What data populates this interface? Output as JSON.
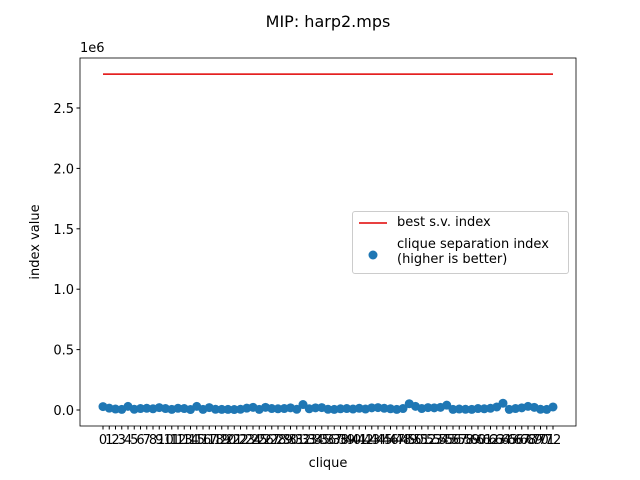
{
  "chart_data": {
    "type": "scatter",
    "title": "MIP: harp2.mps",
    "x_label": "clique",
    "y_label": "index value",
    "offset_text": "1e6",
    "x": [
      0,
      1,
      2,
      3,
      4,
      5,
      6,
      7,
      8,
      9,
      10,
      11,
      12,
      13,
      14,
      15,
      16,
      17,
      18,
      19,
      20,
      21,
      22,
      23,
      24,
      25,
      26,
      27,
      28,
      29,
      30,
      31,
      32,
      33,
      34,
      35,
      36,
      37,
      38,
      39,
      40,
      41,
      42,
      43,
      44,
      45,
      46,
      47,
      48,
      49,
      50,
      51,
      52,
      53,
      54,
      55,
      56,
      57,
      58,
      59,
      60,
      61,
      62,
      63,
      64,
      65,
      66,
      67,
      68,
      69,
      70,
      71,
      72
    ],
    "xlim": [
      -3.68,
      75.68
    ],
    "ylim": [
      -132500,
      2914000
    ],
    "yticks": [
      {
        "value": 0,
        "label": "0.0"
      },
      {
        "value": 500000,
        "label": "0.5"
      },
      {
        "value": 1000000,
        "label": "1.0"
      },
      {
        "value": 1500000,
        "label": "1.5"
      },
      {
        "value": 2000000,
        "label": "2.0"
      },
      {
        "value": 2500000,
        "label": "2.5"
      }
    ],
    "legend_position": "center right",
    "reference_line": {
      "name": "best s.v. index",
      "color": "#e00000",
      "value": 2781000
    },
    "series": [
      {
        "name": "clique separation index\n(higher is better)",
        "color": "#1f77b4",
        "values": [
          28000,
          15000,
          8000,
          5000,
          30000,
          6000,
          12000,
          14000,
          10000,
          20000,
          12000,
          5000,
          14000,
          12000,
          4000,
          30000,
          5000,
          20000,
          6000,
          5000,
          5000,
          4000,
          6000,
          15000,
          22000,
          5000,
          22000,
          12000,
          10000,
          12000,
          18000,
          6000,
          45000,
          10000,
          18000,
          20000,
          6000,
          5000,
          10000,
          12000,
          8000,
          14000,
          8000,
          18000,
          20000,
          14000,
          10000,
          5000,
          12000,
          52000,
          30000,
          12000,
          20000,
          18000,
          22000,
          40000,
          5000,
          8000,
          6000,
          5000,
          12000,
          10000,
          14000,
          25000,
          56000,
          5000,
          12000,
          18000,
          30000,
          22000,
          6000,
          5000,
          25000
        ]
      }
    ]
  }
}
